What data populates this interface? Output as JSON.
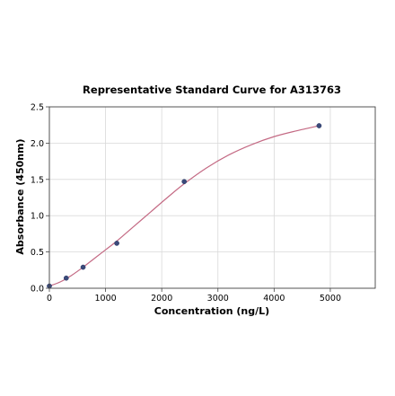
{
  "chart_data": {
    "type": "scatter",
    "title": "Representative Standard Curve for A313763",
    "xlabel": "Concentration (ng/L)",
    "ylabel": "Absorbance (450nm)",
    "xlim": [
      0,
      5800
    ],
    "ylim": [
      0,
      2.5
    ],
    "x_ticks": [
      0,
      1000,
      2000,
      3000,
      4000,
      5000
    ],
    "y_ticks": [
      0.0,
      0.5,
      1.0,
      1.5,
      2.0,
      2.5
    ],
    "x_tick_labels": [
      "0",
      "1000",
      "2000",
      "3000",
      "4000",
      "5000"
    ],
    "y_tick_labels": [
      "0.0",
      "0.5",
      "1.0",
      "1.5",
      "2.0",
      "2.5"
    ],
    "grid": true,
    "series": [
      {
        "kind": "points",
        "x": [
          0,
          300,
          600,
          1200,
          2400,
          4800
        ],
        "y": [
          0.03,
          0.14,
          0.29,
          0.62,
          1.47,
          2.24
        ],
        "color": "#3a4a7a"
      },
      {
        "kind": "fit-curve",
        "x": [
          0,
          200,
          400,
          600,
          800,
          1000,
          1200,
          1500,
          1800,
          2100,
          2400,
          2800,
          3200,
          3600,
          4000,
          4400,
          4800
        ],
        "y": [
          0.03,
          0.09,
          0.18,
          0.29,
          0.41,
          0.53,
          0.65,
          0.85,
          1.05,
          1.25,
          1.44,
          1.66,
          1.84,
          1.98,
          2.09,
          2.17,
          2.24
        ],
        "color": "#c46a84"
      }
    ]
  }
}
